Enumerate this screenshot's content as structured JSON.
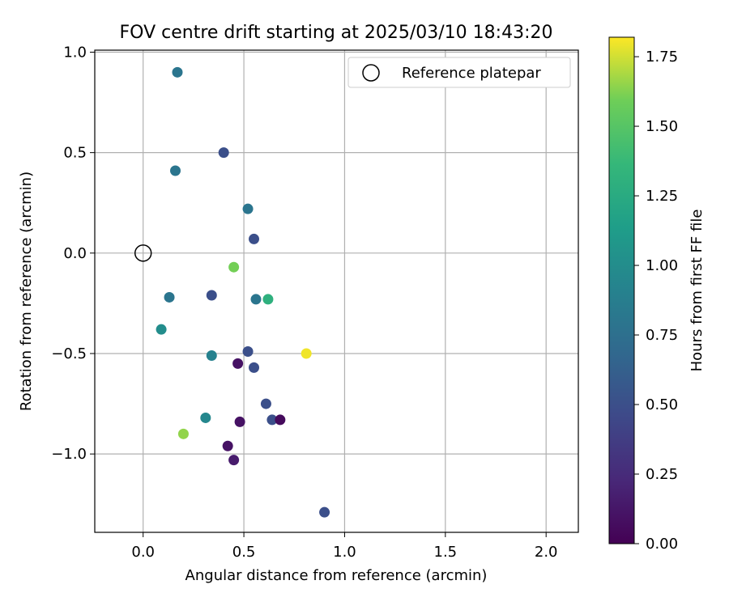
{
  "chart_data": {
    "type": "scatter",
    "title": "FOV centre drift starting at 2025/03/10 18:43:20",
    "xlabel": "Angular distance from reference (arcmin)",
    "ylabel": "Rotation from reference (arcmin)",
    "xlim": [
      -0.24,
      2.16
    ],
    "ylim": [
      -1.39,
      1.01
    ],
    "xticks": [
      0.0,
      0.5,
      1.0,
      1.5,
      2.0
    ],
    "xtick_labels": [
      "0.0",
      "0.5",
      "1.0",
      "1.5",
      "2.0"
    ],
    "yticks": [
      1.0,
      0.5,
      0.0,
      -0.5,
      -1.0
    ],
    "ytick_labels": [
      "1.0",
      "0.5",
      "0.0",
      "−0.5",
      "−1.0"
    ],
    "grid": true,
    "legend": {
      "placement": "top-right",
      "entries": [
        {
          "label": "Reference platepar",
          "marker": "hollow-circle"
        }
      ]
    },
    "reference_point": {
      "x": 0.0,
      "y": 0.0
    },
    "colorbar": {
      "label": "Hours from first FF file",
      "colormap": "viridis",
      "range": [
        0.0,
        1.82
      ],
      "ticks": [
        0.0,
        0.25,
        0.5,
        0.75,
        1.0,
        1.25,
        1.5,
        1.75
      ],
      "tick_labels": [
        "0.00",
        "0.25",
        "0.50",
        "0.75",
        "1.00",
        "1.25",
        "1.50",
        "1.75"
      ]
    },
    "points": [
      {
        "x": 0.17,
        "y": 0.9,
        "hours": 0.8
      },
      {
        "x": 0.4,
        "y": 0.5,
        "hours": 0.5
      },
      {
        "x": 0.16,
        "y": 0.41,
        "hours": 0.8
      },
      {
        "x": 0.52,
        "y": 0.22,
        "hours": 0.8
      },
      {
        "x": 0.55,
        "y": 0.07,
        "hours": 0.5
      },
      {
        "x": 0.45,
        "y": -0.07,
        "hours": 1.6
      },
      {
        "x": 0.13,
        "y": -0.22,
        "hours": 0.8
      },
      {
        "x": 0.34,
        "y": -0.21,
        "hours": 0.5
      },
      {
        "x": 0.56,
        "y": -0.23,
        "hours": 0.8
      },
      {
        "x": 0.62,
        "y": -0.23,
        "hours": 1.3
      },
      {
        "x": 0.09,
        "y": -0.38,
        "hours": 1.0
      },
      {
        "x": 0.34,
        "y": -0.51,
        "hours": 0.9
      },
      {
        "x": 0.52,
        "y": -0.49,
        "hours": 0.5
      },
      {
        "x": 0.81,
        "y": -0.5,
        "hours": 1.8
      },
      {
        "x": 0.47,
        "y": -0.55,
        "hours": 0.1
      },
      {
        "x": 0.55,
        "y": -0.57,
        "hours": 0.5
      },
      {
        "x": 0.61,
        "y": -0.75,
        "hours": 0.5
      },
      {
        "x": 0.31,
        "y": -0.82,
        "hours": 0.95
      },
      {
        "x": 0.48,
        "y": -0.84,
        "hours": 0.1
      },
      {
        "x": 0.64,
        "y": -0.83,
        "hours": 0.5
      },
      {
        "x": 0.68,
        "y": -0.83,
        "hours": 0.05
      },
      {
        "x": 0.2,
        "y": -0.9,
        "hours": 1.65
      },
      {
        "x": 0.42,
        "y": -0.96,
        "hours": 0.1
      },
      {
        "x": 0.45,
        "y": -1.03,
        "hours": 0.15
      },
      {
        "x": 0.9,
        "y": -1.29,
        "hours": 0.5
      }
    ]
  }
}
